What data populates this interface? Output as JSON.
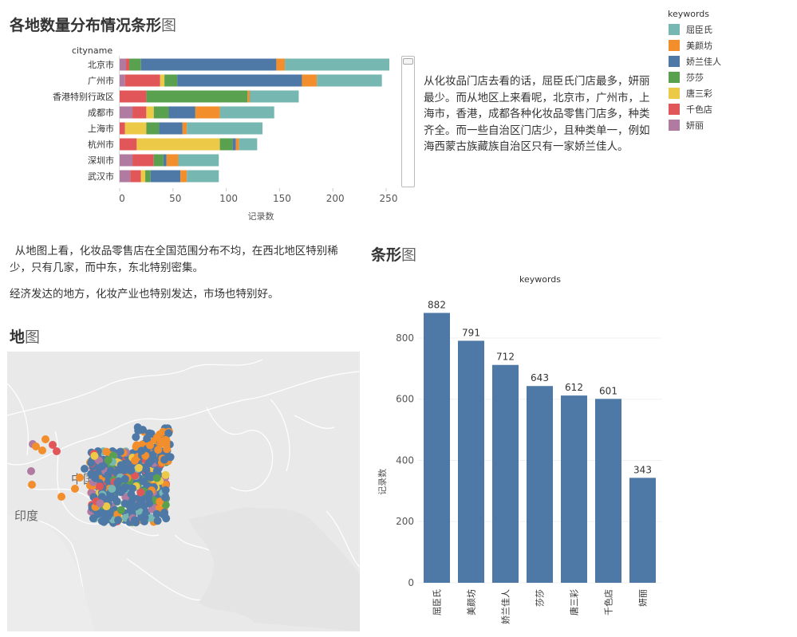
{
  "colors": {
    "屈臣氏": "#76b7b2",
    "美颜坊": "#f28e2b",
    "娇兰佳人": "#4e79a7",
    "莎莎": "#59a14f",
    "唐三彩": "#edc948",
    "千色店": "#e15759",
    "妍丽": "#b07aa1"
  },
  "legend": {
    "title": "keywords",
    "items": [
      "屈臣氏",
      "美颜坊",
      "娇兰佳人",
      "莎莎",
      "唐三彩",
      "千色店",
      "妍丽"
    ]
  },
  "top_title": {
    "bold": "各地数量分布情况条形",
    "light": "图"
  },
  "top_paragraph": "从化妆品门店去看的话，屈臣氏门店最多，妍丽最少。而从地区上来看呢，北京市，广州市，上海市，香港，成都各种化妆品零售门店多，种类齐全。而一些自治区门店少，且种类单一，例如海西蒙古族藏族自治区只有一家娇兰佳人。",
  "middle_paragraph_1": "从地图上看，化妆品零售店在全国范围分布不均，在西北地区特别稀少，只有几家，而中东，东北特别密集。",
  "middle_paragraph_2": "经济发达的地方，化妆产业也特别发达，市场也特别好。",
  "map_section": {
    "title_bold": "地",
    "title_light": "图",
    "labels": {
      "india": "印度",
      "china_partial": "中国"
    }
  },
  "bar_section": {
    "title_bold": "条形",
    "title_light": "图"
  },
  "chart_data": [
    {
      "type": "bar",
      "orientation": "horizontal",
      "stacked": true,
      "title": "各地数量分布情况条形图",
      "ylabel": "cityname",
      "xlabel": "记录数",
      "xlim": [
        0,
        260
      ],
      "xticks": [
        0,
        50,
        100,
        150,
        200,
        250
      ],
      "categories": [
        "北京市",
        "广州市",
        "香港特别行政区",
        "成都市",
        "上海市",
        "杭州市",
        "深圳市",
        "武汉市"
      ],
      "series": [
        {
          "name": "妍丽",
          "values": [
            6,
            5,
            0,
            12,
            0,
            0,
            12,
            10
          ]
        },
        {
          "name": "千色店",
          "values": [
            3,
            33,
            25,
            13,
            5,
            16,
            20,
            10
          ]
        },
        {
          "name": "唐三彩",
          "values": [
            0,
            4,
            0,
            7,
            20,
            78,
            0,
            4
          ]
        },
        {
          "name": "莎莎",
          "values": [
            11,
            12,
            95,
            14,
            12,
            12,
            9,
            5
          ]
        },
        {
          "name": "娇兰佳人",
          "values": [
            127,
            117,
            0,
            25,
            22,
            3,
            3,
            28
          ]
        },
        {
          "name": "美颜坊",
          "values": [
            8,
            14,
            2,
            23,
            4,
            3,
            11,
            6
          ]
        },
        {
          "name": "屈臣氏",
          "values": [
            98,
            61,
            46,
            51,
            71,
            17,
            38,
            30
          ]
        }
      ]
    },
    {
      "type": "bar",
      "title": "keywords",
      "xlabel": "",
      "ylabel": "记录数",
      "ylim": [
        0,
        930
      ],
      "yticks": [
        0,
        200,
        400,
        600,
        800
      ],
      "categories": [
        "屈臣氏",
        "美颜坊",
        "娇兰佳人",
        "莎莎",
        "唐三彩",
        "千色店",
        "妍丽"
      ],
      "values": [
        882,
        791,
        712,
        643,
        612,
        601,
        343
      ]
    }
  ]
}
